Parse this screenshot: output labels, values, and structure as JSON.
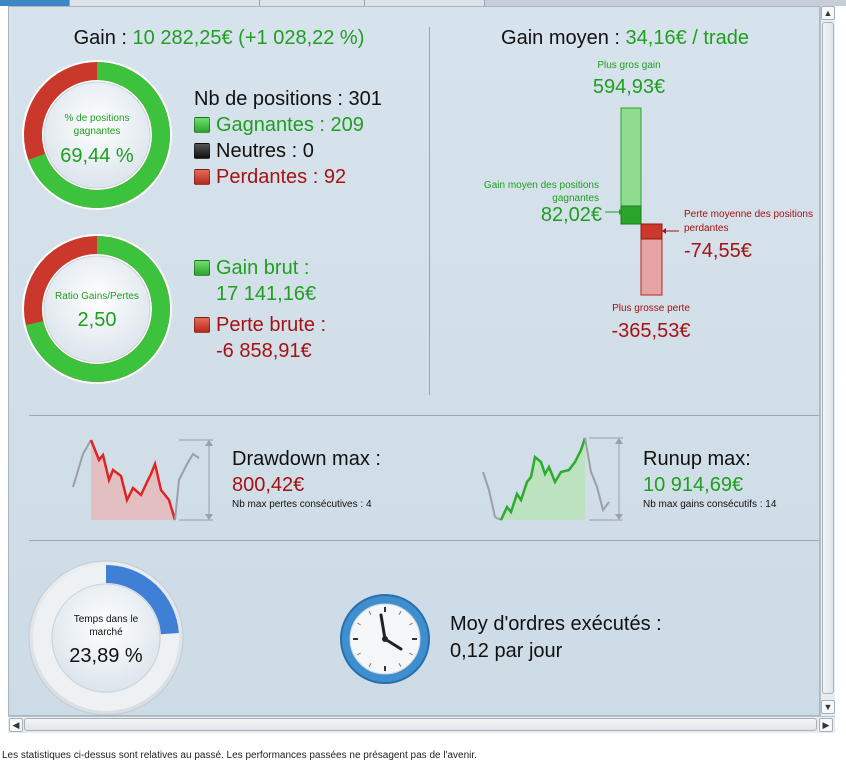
{
  "gain": {
    "label": "Gain : ",
    "value": "10 282,25€ (+1 028,22 %)"
  },
  "positions_ring": {
    "label": "% de positions gagnantes",
    "value": "69,44 %",
    "fraction": 0.6944
  },
  "positions": {
    "title": "Nb de positions : 301",
    "winning": "Gagnantes : 209",
    "neutral": "Neutres : 0",
    "losing": "Perdantes : 92"
  },
  "ratio_ring": {
    "label": "Ratio Gains/Pertes",
    "value": "2,50",
    "fraction": 0.7143
  },
  "gross": {
    "gain_label": "Gain brut :",
    "gain_value": "17 141,16€",
    "loss_label": "Perte brute :",
    "loss_value": "-6 858,91€"
  },
  "avg_gain": {
    "label": "Gain moyen : ",
    "value": "34,16€ / trade",
    "biggest_gain_label": "Plus gros gain",
    "biggest_gain_value": "594,93€",
    "avg_win_label_1": "Gain moyen des positions",
    "avg_win_label_2": "gagnantes",
    "avg_win_value": "82,02€",
    "avg_loss_label_1": "Perte moyenne des positions",
    "avg_loss_label_2": "perdantes",
    "avg_loss_value": "-74,55€",
    "biggest_loss_label": "Plus grosse perte",
    "biggest_loss_value": "-365,53€"
  },
  "drawdown": {
    "title": "Drawdown max :",
    "value": "800,42€",
    "sub": "Nb max pertes consécutives : 4"
  },
  "runup": {
    "title": "Runup max:",
    "value": "10 914,69€",
    "sub": "Nb max gains consécutifs : 14"
  },
  "time_ring": {
    "label": "Temps dans le marché",
    "value": "23,89 %",
    "fraction": 0.2389
  },
  "orders": {
    "title": "Moy d'ordres exécutés :",
    "value": "0,12 par jour"
  },
  "footer": {
    "disclaimer": "Les statistiques ci-dessus sont relatives au passé. Les performances passées ne présagent pas de l'avenir."
  },
  "colors": {
    "win": "#2aa52a",
    "loss": "#c0392b",
    "accent": "#3a7bd5"
  }
}
